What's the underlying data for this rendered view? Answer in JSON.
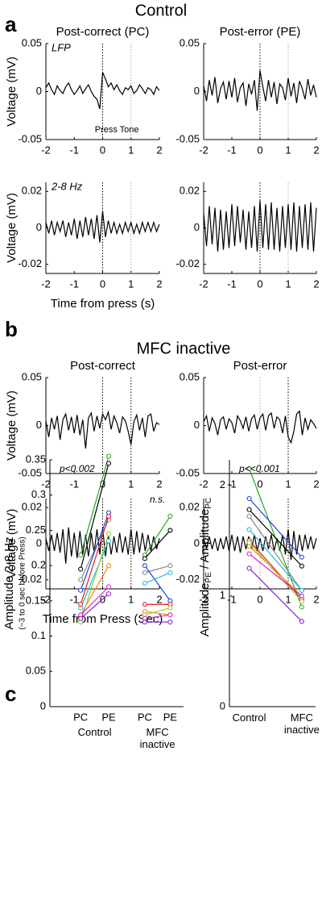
{
  "figure": {
    "panel_a": "a",
    "control": "Control",
    "panel_b": "b",
    "mfc": "MFC inactive",
    "panel_c": "c"
  },
  "chart_data": [
    {
      "type": "line",
      "title": "Post-correct (PC)",
      "annotation": "LFP",
      "event_label": "Press Tone",
      "ylabel": "Voltage (mV)",
      "x": [
        -2,
        -1.9,
        -1.8,
        -1.7,
        -1.6,
        -1.5,
        -1.4,
        -1.3,
        -1.2,
        -1.1,
        -1,
        -0.9,
        -0.8,
        -0.7,
        -0.6,
        -0.5,
        -0.4,
        -0.3,
        -0.2,
        -0.1,
        0,
        0.1,
        0.2,
        0.3,
        0.4,
        0.5,
        0.6,
        0.7,
        0.8,
        0.9,
        1,
        1.1,
        1.2,
        1.3,
        1.4,
        1.5,
        1.6,
        1.7,
        1.8,
        1.9,
        2
      ],
      "series": [
        {
          "color": "#000000",
          "values": [
            0.004,
            0.009,
            0.002,
            -0.003,
            0.006,
            0.001,
            -0.002,
            0.005,
            0.009,
            0.002,
            -0.003,
            0.001,
            0.006,
            -0.002,
            0.003,
            0.007,
            0.0,
            -0.005,
            -0.008,
            -0.018,
            0.02,
            0.013,
            0.005,
            0.009,
            0.002,
            0.007,
            0.001,
            -0.003,
            0.004,
            0.002,
            0.006,
            -0.002,
            0.001,
            0.007,
            0.003,
            -0.002,
            0.004,
            0.002,
            -0.003,
            0.005,
            0.001
          ]
        }
      ],
      "events": [
        {
          "x": 0,
          "color": "#000000"
        },
        {
          "x": 1,
          "color": "#aaaaaa"
        }
      ],
      "xlim": [
        -2,
        2
      ],
      "xticks": [
        -2,
        -1,
        0,
        1,
        2
      ],
      "ylim": [
        -0.05,
        0.05
      ],
      "yticks": [
        -0.05,
        0,
        0.05
      ]
    },
    {
      "type": "line",
      "title": "Post-error (PE)",
      "x": [
        -2,
        -1.9,
        -1.8,
        -1.7,
        -1.6,
        -1.5,
        -1.4,
        -1.3,
        -1.2,
        -1.1,
        -1,
        -0.9,
        -0.8,
        -0.7,
        -0.6,
        -0.5,
        -0.4,
        -0.3,
        -0.2,
        -0.1,
        0,
        0.1,
        0.2,
        0.3,
        0.4,
        0.5,
        0.6,
        0.7,
        0.8,
        0.9,
        1,
        1.1,
        1.2,
        1.3,
        1.4,
        1.5,
        1.6,
        1.7,
        1.8,
        1.9,
        2
      ],
      "series": [
        {
          "color": "#000000",
          "values": [
            0.006,
            -0.01,
            0.012,
            -0.004,
            0.015,
            -0.012,
            0.003,
            0.01,
            -0.008,
            0.011,
            -0.006,
            0.014,
            -0.011,
            0.004,
            0.009,
            -0.015,
            0.008,
            -0.003,
            0.012,
            -0.02,
            0.022,
            0.005,
            -0.01,
            0.012,
            -0.006,
            0.01,
            -0.013,
            0.008,
            0.004,
            -0.009,
            0.014,
            -0.005,
            0.009,
            -0.012,
            0.011,
            0.003,
            -0.008,
            0.013,
            -0.004,
            0.007,
            -0.006
          ]
        }
      ],
      "events": [
        {
          "x": 0,
          "color": "#000000"
        },
        {
          "x": 1,
          "color": "#aaaaaa"
        }
      ],
      "xlim": [
        -2,
        2
      ],
      "xticks": [
        -2,
        -1,
        0,
        1,
        2
      ],
      "ylim": [
        -0.05,
        0.05
      ],
      "yticks": [
        -0.05,
        0,
        0.05
      ]
    },
    {
      "type": "line",
      "annotation": "2-8 Hz",
      "ylabel": "Voltage (mV)",
      "xlabel": "Time from press (s)",
      "x": [
        -2,
        -1.9,
        -1.8,
        -1.7,
        -1.6,
        -1.5,
        -1.4,
        -1.3,
        -1.2,
        -1.1,
        -1,
        -0.9,
        -0.8,
        -0.7,
        -0.6,
        -0.5,
        -0.4,
        -0.3,
        -0.2,
        -0.1,
        0,
        0.1,
        0.2,
        0.3,
        0.4,
        0.5,
        0.6,
        0.7,
        0.8,
        0.9,
        1,
        1.1,
        1.2,
        1.3,
        1.4,
        1.5,
        1.6,
        1.7,
        1.8,
        1.9,
        2
      ],
      "series": [
        {
          "color": "#000000",
          "values": [
            0.003,
            -0.003,
            0.004,
            -0.004,
            0.003,
            -0.002,
            0.004,
            -0.005,
            0.003,
            -0.004,
            0.005,
            -0.006,
            0.004,
            -0.005,
            0.006,
            -0.004,
            0.005,
            -0.006,
            0.007,
            -0.008,
            0.009,
            -0.005,
            0.004,
            -0.003,
            0.003,
            -0.003,
            0.002,
            -0.003,
            0.003,
            -0.002,
            0.003,
            -0.003,
            0.002,
            -0.003,
            0.003,
            -0.002,
            0.003,
            -0.002,
            0.003,
            -0.002,
            0.002
          ]
        }
      ],
      "events": [
        {
          "x": 0,
          "color": "#000000"
        },
        {
          "x": 1,
          "color": "#aaaaaa"
        }
      ],
      "xlim": [
        -2,
        2
      ],
      "xticks": [
        -2,
        -1,
        0,
        1,
        2
      ],
      "ylim": [
        -0.025,
        0.025
      ],
      "yticks": [
        -0.02,
        0,
        0.02
      ]
    },
    {
      "type": "line",
      "x": [
        -2,
        -1.9,
        -1.8,
        -1.7,
        -1.6,
        -1.5,
        -1.4,
        -1.3,
        -1.2,
        -1.1,
        -1,
        -0.9,
        -0.8,
        -0.7,
        -0.6,
        -0.5,
        -0.4,
        -0.3,
        -0.2,
        -0.1,
        0,
        0.1,
        0.2,
        0.3,
        0.4,
        0.5,
        0.6,
        0.7,
        0.8,
        0.9,
        1,
        1.1,
        1.2,
        1.3,
        1.4,
        1.5,
        1.6,
        1.7,
        1.8,
        1.9,
        2
      ],
      "series": [
        {
          "color": "#000000",
          "values": [
            0.008,
            -0.01,
            0.012,
            -0.009,
            0.011,
            -0.013,
            0.01,
            -0.012,
            0.009,
            -0.011,
            0.013,
            -0.01,
            0.012,
            -0.008,
            0.01,
            -0.012,
            0.009,
            -0.011,
            0.012,
            -0.013,
            0.015,
            -0.011,
            0.013,
            -0.012,
            0.014,
            -0.012,
            0.011,
            -0.013,
            0.012,
            -0.011,
            0.013,
            -0.012,
            0.014,
            -0.013,
            0.012,
            -0.011,
            0.013,
            -0.012,
            0.014,
            -0.013,
            0.011
          ]
        }
      ],
      "events": [
        {
          "x": 0,
          "color": "#000000"
        },
        {
          "x": 1,
          "color": "#aaaaaa"
        }
      ],
      "xlim": [
        -2,
        2
      ],
      "xticks": [
        -2,
        -1,
        0,
        1,
        2
      ],
      "ylim": [
        -0.025,
        0.025
      ],
      "yticks": [
        -0.02,
        0,
        0.02
      ]
    },
    {
      "type": "line",
      "title": "Post-correct",
      "ylabel": "Voltage (mV)",
      "x": [
        -2,
        -1.9,
        -1.8,
        -1.7,
        -1.6,
        -1.5,
        -1.4,
        -1.3,
        -1.2,
        -1.1,
        -1,
        -0.9,
        -0.8,
        -0.7,
        -0.6,
        -0.5,
        -0.4,
        -0.3,
        -0.2,
        -0.1,
        0,
        0.1,
        0.2,
        0.3,
        0.4,
        0.5,
        0.6,
        0.7,
        0.8,
        0.9,
        1,
        1.1,
        1.2,
        1.3,
        1.4,
        1.5,
        1.6,
        1.7,
        1.8,
        1.9,
        2
      ],
      "series": [
        {
          "color": "#000000",
          "values": [
            0.005,
            -0.012,
            0.008,
            -0.004,
            0.01,
            -0.015,
            0.006,
            0.012,
            -0.005,
            0.009,
            -0.008,
            0.011,
            -0.01,
            0.006,
            -0.024,
            0.008,
            0.013,
            -0.006,
            0.01,
            -0.003,
            0.012,
            0.006,
            0.014,
            -0.004,
            0.01,
            0.003,
            -0.008,
            0.009,
            0.005,
            -0.006,
            -0.02,
            0.004,
            0.011,
            -0.005,
            0.008,
            -0.012,
            0.01,
            0.012,
            -0.006,
            0.003,
            0.001
          ]
        }
      ],
      "events": [
        {
          "x": 0,
          "color": "#000000"
        },
        {
          "x": 1,
          "color": "#000000"
        }
      ],
      "xlim": [
        -2,
        2
      ],
      "xticks": [
        -2,
        -1,
        0,
        1,
        2
      ],
      "ylim": [
        -0.05,
        0.05
      ],
      "yticks": [
        -0.05,
        0,
        0.05
      ]
    },
    {
      "type": "line",
      "title": "Post-error",
      "x": [
        -2,
        -1.9,
        -1.8,
        -1.7,
        -1.6,
        -1.5,
        -1.4,
        -1.3,
        -1.2,
        -1.1,
        -1,
        -0.9,
        -0.8,
        -0.7,
        -0.6,
        -0.5,
        -0.4,
        -0.3,
        -0.2,
        -0.1,
        0,
        0.1,
        0.2,
        0.3,
        0.4,
        0.5,
        0.6,
        0.7,
        0.8,
        0.9,
        1,
        1.1,
        1.2,
        1.3,
        1.4,
        1.5,
        1.6,
        1.7,
        1.8,
        1.9,
        2
      ],
      "series": [
        {
          "color": "#000000",
          "values": [
            0.004,
            0.01,
            -0.006,
            0.008,
            0.002,
            -0.01,
            0.006,
            0.009,
            -0.004,
            0.007,
            0.003,
            -0.008,
            0.01,
            0.005,
            -0.003,
            0.009,
            -0.006,
            0.007,
            0.011,
            -0.004,
            0.008,
            0.012,
            -0.005,
            0.01,
            0.013,
            -0.003,
            0.009,
            0.006,
            -0.008,
            0.01,
            -0.012,
            -0.018,
            -0.006,
            0.012,
            0.015,
            -0.01,
            0.008,
            -0.004,
            0.006,
            0.002,
            -0.003
          ]
        }
      ],
      "events": [
        {
          "x": 0,
          "color": "#aaaaaa"
        },
        {
          "x": 1,
          "color": "#000000"
        }
      ],
      "xlim": [
        -2,
        2
      ],
      "xticks": [
        -2,
        -1,
        0,
        1,
        2
      ],
      "ylim": [
        -0.05,
        0.05
      ],
      "yticks": [
        -0.05,
        0,
        0.05
      ]
    },
    {
      "type": "line",
      "ylabel": "Voltage (mV)",
      "xlabel": "Time from Press (Sec)",
      "x": [
        -2,
        -1.9,
        -1.8,
        -1.7,
        -1.6,
        -1.5,
        -1.4,
        -1.3,
        -1.2,
        -1.1,
        -1,
        -0.9,
        -0.8,
        -0.7,
        -0.6,
        -0.5,
        -0.4,
        -0.3,
        -0.2,
        -0.1,
        0,
        0.1,
        0.2,
        0.3,
        0.4,
        0.5,
        0.6,
        0.7,
        0.8,
        0.9,
        1,
        1.1,
        1.2,
        1.3,
        1.4,
        1.5,
        1.6,
        1.7,
        1.8,
        1.9,
        2
      ],
      "series": [
        {
          "color": "#000000",
          "values": [
            0.003,
            -0.004,
            0.005,
            -0.004,
            0.006,
            -0.005,
            0.008,
            -0.011,
            0.009,
            -0.007,
            0.006,
            -0.008,
            0.007,
            -0.006,
            0.005,
            -0.007,
            0.006,
            -0.005,
            0.008,
            -0.006,
            0.009,
            -0.007,
            0.005,
            -0.006,
            0.004,
            -0.005,
            0.006,
            -0.005,
            0.004,
            -0.006,
            0.008,
            -0.006,
            0.007,
            -0.005,
            0.006,
            -0.004,
            0.005,
            -0.004,
            0.004,
            -0.003,
            0.003
          ]
        }
      ],
      "events": [
        {
          "x": 0,
          "color": "#000000"
        },
        {
          "x": 1,
          "color": "#000000"
        }
      ],
      "xlim": [
        -2,
        2
      ],
      "xticks": [
        -2,
        -1,
        0,
        1,
        2
      ],
      "ylim": [
        -0.025,
        0.025
      ],
      "yticks": [
        -0.02,
        0,
        0.02
      ]
    },
    {
      "type": "line",
      "x": [
        -2,
        -1.9,
        -1.8,
        -1.7,
        -1.6,
        -1.5,
        -1.4,
        -1.3,
        -1.2,
        -1.1,
        -1,
        -0.9,
        -0.8,
        -0.7,
        -0.6,
        -0.5,
        -0.4,
        -0.3,
        -0.2,
        -0.1,
        0,
        0.1,
        0.2,
        0.3,
        0.4,
        0.5,
        0.6,
        0.7,
        0.8,
        0.9,
        1,
        1.1,
        1.2,
        1.3,
        1.4,
        1.5,
        1.6,
        1.7,
        1.8,
        1.9,
        2
      ],
      "series": [
        {
          "color": "#000000",
          "values": [
            0.003,
            -0.003,
            0.004,
            -0.003,
            0.003,
            -0.004,
            0.003,
            -0.003,
            0.004,
            -0.004,
            0.005,
            -0.004,
            0.004,
            -0.005,
            0.004,
            -0.003,
            0.004,
            -0.003,
            0.005,
            -0.004,
            0.003,
            -0.004,
            0.004,
            -0.003,
            0.005,
            -0.004,
            0.003,
            -0.004,
            0.005,
            -0.006,
            0.008,
            -0.009,
            0.007,
            -0.006,
            0.005,
            -0.004,
            0.005,
            -0.003,
            0.004,
            -0.003,
            0.003
          ]
        }
      ],
      "events": [
        {
          "x": 0,
          "color": "#aaaaaa"
        },
        {
          "x": 1,
          "color": "#000000"
        }
      ],
      "xlim": [
        -2,
        2
      ],
      "xticks": [
        -2,
        -1,
        0,
        1,
        2
      ],
      "ylim": [
        -0.025,
        0.025
      ],
      "yticks": [
        -0.02,
        0,
        0.02
      ]
    },
    {
      "type": "paired",
      "annotation": "p<0.002",
      "annotation2": "n.s.",
      "ylabel": "Amplitude 2-8 Hz",
      "ylabel2": "(~3 to 0 sec before Press)",
      "categories": [
        "PC",
        "PE",
        "PC",
        "PE"
      ],
      "groups": [
        "Control",
        "MFC inactive"
      ],
      "series": [
        {
          "color": "#22aa22",
          "values": [
            0.215,
            0.355,
            0.215,
            0.27
          ]
        },
        {
          "color": "#000000",
          "values": [
            0.195,
            0.345,
            0.21,
            0.25
          ]
        },
        {
          "color": "#888888",
          "values": [
            0.18,
            0.265,
            0.19,
            0.2
          ]
        },
        {
          "color": "#2244dd",
          "values": [
            0.165,
            0.275,
            0.2,
            0.15
          ]
        },
        {
          "color": "#22bbdd",
          "values": [
            0.14,
            0.235,
            0.175,
            0.19
          ]
        },
        {
          "color": "#e02020",
          "values": [
            0.145,
            0.27,
            0.145,
            0.145
          ]
        },
        {
          "color": "#ff8800",
          "values": [
            0.13,
            0.2,
            0.135,
            0.13
          ]
        },
        {
          "color": "#99cc33",
          "values": [
            0.12,
            0.245,
            0.13,
            0.14
          ]
        },
        {
          "color": "#dd22dd",
          "values": [
            0.13,
            0.17,
            0.125,
            0.13
          ]
        },
        {
          "color": "#8822cc",
          "values": [
            0.125,
            0.16,
            0.12,
            0.12
          ]
        }
      ],
      "ylim": [
        0,
        0.35
      ],
      "yticks": [
        0,
        0.05,
        0.1,
        0.15,
        0.2,
        0.25,
        0.3,
        0.35
      ]
    },
    {
      "type": "paired",
      "annotation": "p<<0.001",
      "ylabel_parts": [
        "Amplitude",
        "PE",
        " / Amplitude",
        "PC"
      ],
      "categories": [
        "Control",
        "MFC inactive"
      ],
      "series": [
        {
          "color": "#22aa22",
          "values": [
            2.15,
            0.9
          ]
        },
        {
          "color": "#000000",
          "values": [
            1.78,
            1.27
          ]
        },
        {
          "color": "#888888",
          "values": [
            1.72,
            1.05
          ]
        },
        {
          "color": "#2244dd",
          "values": [
            1.88,
            1.35
          ]
        },
        {
          "color": "#22bbdd",
          "values": [
            1.6,
            1.05
          ]
        },
        {
          "color": "#e02020",
          "values": [
            1.5,
            0.97
          ]
        },
        {
          "color": "#ff8800",
          "values": [
            1.45,
            1.0
          ]
        },
        {
          "color": "#99cc33",
          "values": [
            1.48,
            0.95
          ]
        },
        {
          "color": "#dd22dd",
          "values": [
            1.38,
            1.0
          ]
        },
        {
          "color": "#8822cc",
          "values": [
            1.25,
            0.77
          ]
        }
      ],
      "ylim": [
        0,
        2.23
      ],
      "yticks": [
        0,
        1,
        2
      ]
    }
  ]
}
